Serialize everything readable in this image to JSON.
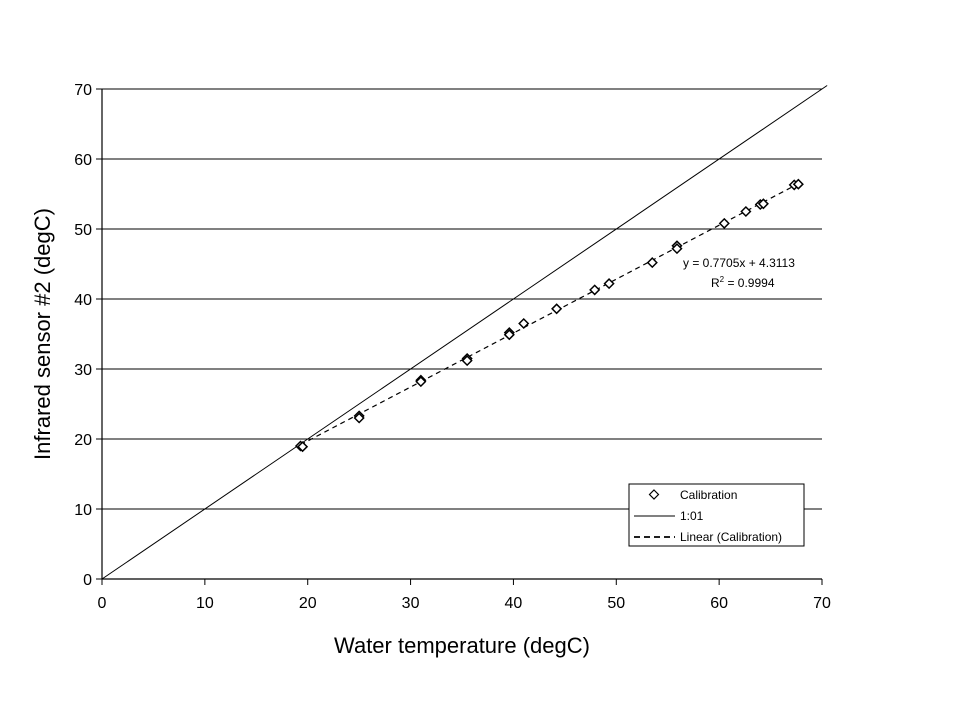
{
  "chart_data": {
    "type": "scatter",
    "title": "",
    "xlabel": "Water temperature (degC)",
    "ylabel": "Infrared sensor #2 (degC)",
    "xlim": [
      0,
      70
    ],
    "ylim": [
      0,
      70
    ],
    "xticks": [
      "0",
      "10",
      "20",
      "30",
      "40",
      "50",
      "60",
      "70"
    ],
    "yticks": [
      "0",
      "10",
      "20",
      "30",
      "40",
      "50",
      "60",
      "70"
    ],
    "horizontal_gridlines": true,
    "legend_position": "bottom-right",
    "series": [
      {
        "name": "Calibration",
        "kind": "markers",
        "marker": "diamond",
        "points": [
          [
            19.3,
            19.0
          ],
          [
            19.5,
            18.9
          ],
          [
            25.0,
            23.3
          ],
          [
            25.0,
            23.0
          ],
          [
            31.0,
            28.4
          ],
          [
            31.0,
            28.2
          ],
          [
            35.5,
            31.5
          ],
          [
            35.5,
            31.2
          ],
          [
            39.6,
            35.2
          ],
          [
            39.6,
            34.9
          ],
          [
            41.0,
            36.5
          ],
          [
            44.2,
            38.6
          ],
          [
            47.9,
            41.3
          ],
          [
            49.3,
            42.2
          ],
          [
            53.5,
            45.2
          ],
          [
            55.9,
            47.6
          ],
          [
            55.9,
            47.2
          ],
          [
            60.5,
            50.8
          ],
          [
            62.6,
            52.5
          ],
          [
            64.0,
            53.5
          ],
          [
            64.3,
            53.6
          ],
          [
            67.3,
            56.3
          ],
          [
            67.7,
            56.4
          ]
        ],
        "color": "#000000"
      },
      {
        "name": "1:01",
        "kind": "line",
        "style": "solid",
        "points": [
          [
            0,
            0
          ],
          [
            70.5,
            70.5
          ]
        ],
        "color": "#000000"
      },
      {
        "name": "Linear (Calibration)",
        "kind": "line",
        "style": "dashed",
        "points": [
          [
            19.3,
            19.18
          ],
          [
            67.7,
            56.47
          ]
        ],
        "color": "#000000"
      }
    ],
    "annotations": {
      "equation": "y = 0.7705x + 4.3113",
      "r2_prefix": "R",
      "r2_sup": "2",
      "r2_value": " = 0.9994"
    },
    "legend": {
      "entries": [
        "Calibration",
        "1:01",
        "Linear (Calibration)"
      ]
    }
  }
}
